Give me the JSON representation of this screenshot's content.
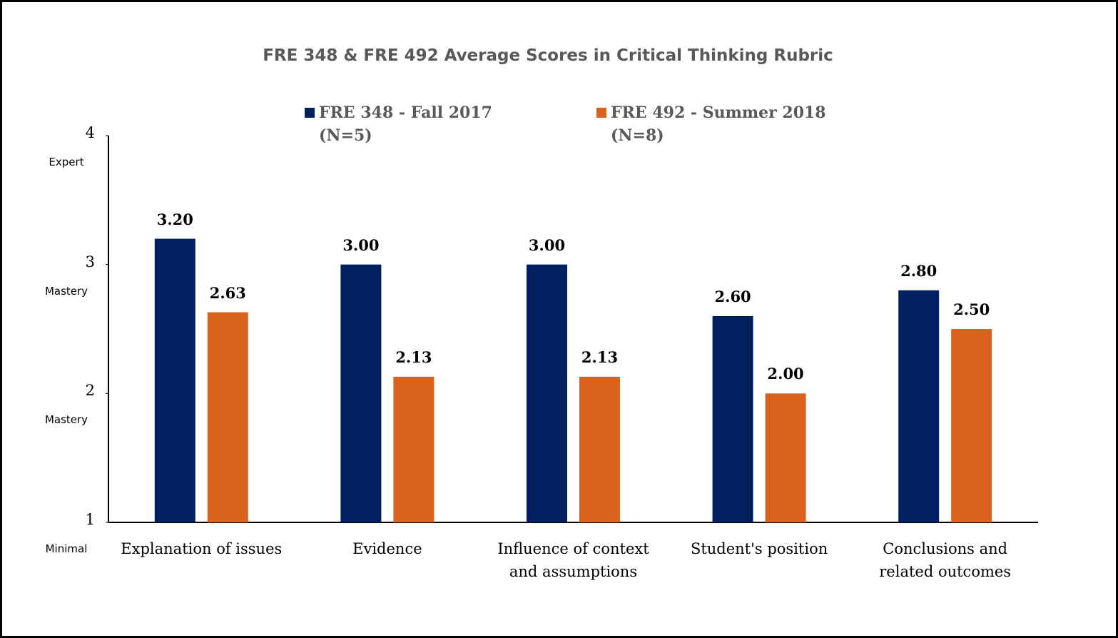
{
  "chart_data": {
    "type": "bar",
    "title": "FRE 348 & FRE 492 Average Scores in Critical Thinking Rubric",
    "categories": [
      "Explanation of issues",
      "Evidence",
      "Influence of context and assumptions",
      "Student's position",
      "Conclusions and related outcomes"
    ],
    "series": [
      {
        "name": "FRE 348 - Fall 2017 (N=5)",
        "color": "#002060",
        "values": [
          3.2,
          3.0,
          3.0,
          2.6,
          2.8
        ],
        "value_labels": [
          "3.20",
          "3.00",
          "3.00",
          "2.60",
          "2.80"
        ]
      },
      {
        "name": "FRE 492 - Summer 2018 (N=8)",
        "color": "#d9621e",
        "values": [
          2.63,
          2.13,
          2.13,
          2.0,
          2.5
        ],
        "value_labels": [
          "2.63",
          "2.13",
          "2.13",
          "2.00",
          "2.50"
        ]
      }
    ],
    "ylim": [
      1,
      4
    ],
    "yticks": [
      1,
      2,
      3,
      4
    ],
    "ytick_sublabels": [
      "Minimal",
      "Mastery",
      "Mastery",
      "Expert"
    ],
    "grid": false
  }
}
